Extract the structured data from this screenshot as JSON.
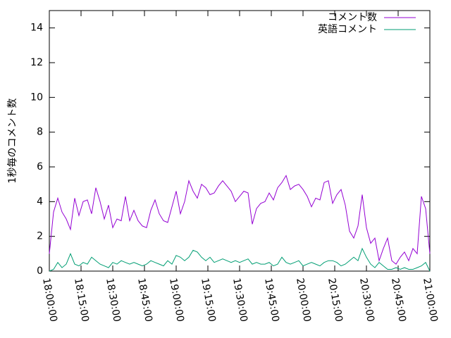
{
  "chart_data": {
    "type": "line",
    "y_label": "1秒毎のコメント数",
    "x": [
      "18:00:00",
      "18:02:00",
      "18:04:00",
      "18:06:00",
      "18:08:00",
      "18:10:00",
      "18:12:00",
      "18:14:00",
      "18:16:00",
      "18:18:00",
      "18:20:00",
      "18:22:00",
      "18:24:00",
      "18:26:00",
      "18:28:00",
      "18:30:00",
      "18:32:00",
      "18:34:00",
      "18:36:00",
      "18:38:00",
      "18:40:00",
      "18:42:00",
      "18:44:00",
      "18:46:00",
      "18:48:00",
      "18:50:00",
      "18:52:00",
      "18:54:00",
      "18:56:00",
      "18:58:00",
      "19:00:00",
      "19:02:00",
      "19:04:00",
      "19:06:00",
      "19:08:00",
      "19:10:00",
      "19:12:00",
      "19:14:00",
      "19:16:00",
      "19:18:00",
      "19:20:00",
      "19:22:00",
      "19:24:00",
      "19:26:00",
      "19:28:00",
      "19:30:00",
      "19:32:00",
      "19:34:00",
      "19:36:00",
      "19:38:00",
      "19:40:00",
      "19:42:00",
      "19:44:00",
      "19:46:00",
      "19:48:00",
      "19:50:00",
      "19:52:00",
      "19:54:00",
      "19:56:00",
      "19:58:00",
      "20:00:00",
      "20:02:00",
      "20:04:00",
      "20:06:00",
      "20:08:00",
      "20:10:00",
      "20:12:00",
      "20:14:00",
      "20:16:00",
      "20:18:00",
      "20:20:00",
      "20:22:00",
      "20:24:00",
      "20:26:00",
      "20:28:00",
      "20:30:00",
      "20:32:00",
      "20:34:00",
      "20:36:00",
      "20:38:00",
      "20:40:00",
      "20:42:00",
      "20:44:00",
      "20:46:00",
      "20:48:00",
      "20:50:00",
      "20:52:00",
      "20:54:00",
      "20:56:00",
      "20:58:00",
      "21:00:00"
    ],
    "series": [
      {
        "name": "コメント数",
        "color": "#9400d3",
        "values": [
          1.0,
          3.4,
          4.2,
          3.4,
          3.0,
          2.4,
          4.2,
          3.2,
          4.0,
          4.1,
          3.3,
          4.8,
          4.0,
          3.0,
          3.8,
          2.5,
          3.0,
          2.9,
          4.3,
          2.9,
          3.5,
          2.9,
          2.6,
          2.5,
          3.5,
          4.1,
          3.3,
          2.9,
          2.8,
          3.7,
          4.6,
          3.3,
          4.0,
          5.2,
          4.6,
          4.2,
          5.0,
          4.8,
          4.4,
          4.5,
          4.9,
          5.2,
          4.9,
          4.6,
          4.0,
          4.3,
          4.6,
          4.5,
          2.7,
          3.6,
          3.9,
          4.0,
          4.5,
          4.1,
          4.8,
          5.1,
          5.5,
          4.7,
          4.9,
          5.0,
          4.7,
          4.3,
          3.7,
          4.2,
          4.1,
          5.1,
          5.2,
          3.9,
          4.4,
          4.7,
          3.8,
          2.3,
          1.9,
          2.6,
          4.4,
          2.5,
          1.6,
          1.9,
          0.6,
          1.3,
          1.9,
          0.6,
          0.4,
          0.8,
          1.1,
          0.6,
          1.3,
          1.0,
          4.3,
          3.6,
          1.0
        ]
      },
      {
        "name": "英語コメント",
        "color": "#009e73",
        "values": [
          0.0,
          0.1,
          0.5,
          0.2,
          0.4,
          1.0,
          0.4,
          0.3,
          0.5,
          0.4,
          0.8,
          0.6,
          0.4,
          0.3,
          0.2,
          0.5,
          0.4,
          0.6,
          0.5,
          0.4,
          0.5,
          0.4,
          0.3,
          0.4,
          0.6,
          0.5,
          0.4,
          0.3,
          0.6,
          0.4,
          0.9,
          0.8,
          0.6,
          0.8,
          1.2,
          1.1,
          0.8,
          0.6,
          0.8,
          0.5,
          0.6,
          0.7,
          0.6,
          0.5,
          0.6,
          0.5,
          0.6,
          0.7,
          0.4,
          0.5,
          0.4,
          0.4,
          0.5,
          0.3,
          0.4,
          0.8,
          0.5,
          0.4,
          0.5,
          0.6,
          0.3,
          0.4,
          0.5,
          0.4,
          0.3,
          0.5,
          0.6,
          0.6,
          0.5,
          0.3,
          0.4,
          0.6,
          0.8,
          0.6,
          1.3,
          0.8,
          0.4,
          0.2,
          0.5,
          0.3,
          0.1,
          0.1,
          0.2,
          0.1,
          0.2,
          0.1,
          0.1,
          0.2,
          0.3,
          0.5,
          0.0
        ]
      }
    ],
    "xlim": [
      "18:00:00",
      "21:00:00"
    ],
    "xticks": [
      "18:00:00",
      "18:15:00",
      "18:30:00",
      "18:45:00",
      "19:00:00",
      "19:15:00",
      "19:30:00",
      "19:45:00",
      "20:00:00",
      "20:15:00",
      "20:30:00",
      "20:45:00",
      "21:00:00"
    ],
    "ylim": [
      0,
      15
    ],
    "yticks": [
      0,
      2,
      4,
      6,
      8,
      10,
      12,
      14
    ],
    "legend": "top-right"
  }
}
